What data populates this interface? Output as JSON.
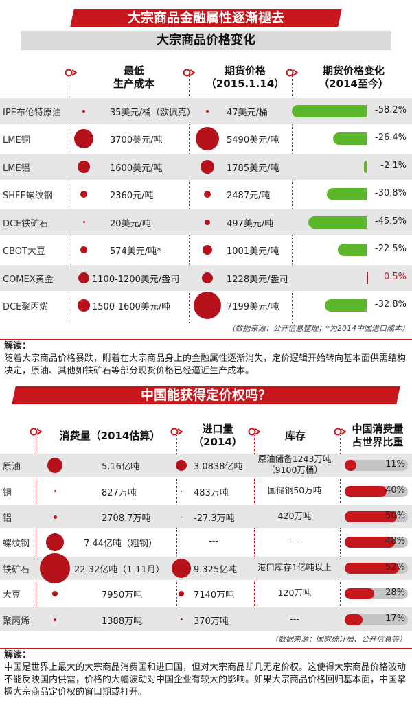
{
  "banner1": "大宗商品金融属性逐渐褪去",
  "subtitle1": "大宗商品价格变化",
  "t1": {
    "h_cost": "最低\n生产成本",
    "h_price": "期货价格\n（2015.1.14）",
    "h_change": "期货价格变化\n（2014至今）",
    "source": "（数据来源：公开信息整理；*为2014中国进口成本）",
    "rows": [
      {
        "name": "IPE布伦特原油",
        "cost": "35美元/桶（欧佩克）",
        "price": "47美元/桶",
        "change": "-58.2%",
        "chg": -58.2,
        "cost_r": 2,
        "price_r": 2
      },
      {
        "name": "LME铜",
        "cost": "3700美元/吨",
        "price": "5490美元/吨",
        "change": "-26.4%",
        "chg": -26.4,
        "cost_r": 14,
        "price_r": 17
      },
      {
        "name": "LME铝",
        "cost": "1600美元/吨",
        "price": "1785美元/吨",
        "change": "-2.1%",
        "chg": -2.1,
        "cost_r": 9,
        "price_r": 10
      },
      {
        "name": "SHFE螺纹钢",
        "cost": "2360元/吨",
        "price": "2487元/吨",
        "change": "-30.8%",
        "chg": -30.8,
        "cost_r": 5,
        "price_r": 5
      },
      {
        "name": "DCE铁矿石",
        "cost": "20美元/吨",
        "price": "497美元/吨",
        "change": "-45.5%",
        "chg": -45.5,
        "cost_r": 1.5,
        "price_r": 4
      },
      {
        "name": "CBOT大豆",
        "cost": "574美元/吨*",
        "price": "1001美元/吨",
        "change": "-22.5%",
        "chg": -22.5,
        "cost_r": 5,
        "price_r": 7
      },
      {
        "name": "COMEX黄金",
        "cost": "1100-1200美元/盎司",
        "price": "1228美元/盎司",
        "change": "0.5%",
        "chg": 0.5,
        "cost_r": 8,
        "price_r": 8
      },
      {
        "name": "DCE聚丙烯",
        "cost": "1500-1600美元/吨",
        "price": "7199美元/吨",
        "change": "-32.8%",
        "chg": -32.8,
        "cost_r": 9,
        "price_r": 20
      }
    ]
  },
  "reading1_title": "解读：",
  "reading1": "随着大宗商品价格暴跌，附着在大宗商品身上的金融属性逐渐消失，定价逻辑开始转向基本面供需结构决定，原油、其他如铁矿石等部分现货价格已经逼近生产成本。",
  "banner2": "中国能获得定价权吗？",
  "t2": {
    "h_cons": "消费量（2014估算）",
    "h_import": "进口量\n（2014）",
    "h_stock": "库存",
    "h_share": "中国消费量\n占世界比重",
    "source": "（数据来源：国家统计局、公开信息等）",
    "rows": [
      {
        "name": "原油",
        "cons": "5.16亿吨",
        "imp": "3.0838亿吨",
        "stock": "原油储备1243万吨\n（9100万桶）",
        "share": "11%",
        "sv": 11,
        "cons_r": 11,
        "imp_r": 8
      },
      {
        "name": "铜",
        "cons": "827万吨",
        "imp": "483万吨",
        "stock": "国储铜50万吨",
        "share": "40%",
        "sv": 40,
        "cons_r": 1.5,
        "imp_r": 1
      },
      {
        "name": "铝",
        "cons": "2708.7万吨",
        "imp": "-27.3万吨",
        "stock": "420万吨",
        "share": "50%",
        "sv": 50,
        "cons_r": 2.5,
        "imp_r": 0.5
      },
      {
        "name": "螺纹钢",
        "cons": "7.44亿吨（粗钢）",
        "imp": "---",
        "stock": "---",
        "share": "48%",
        "sv": 48,
        "cons_r": 13,
        "imp_r": 0
      },
      {
        "name": "铁矿石",
        "cons": "22.32亿吨（1-11月）",
        "imp": "9.325亿吨",
        "stock": "港口库存1亿吨以上",
        "share": "52%",
        "sv": 52,
        "cons_r": 22,
        "imp_r": 14
      },
      {
        "name": "大豆",
        "cons": "7950万吨",
        "imp": "7140万吨",
        "stock": "120万吨",
        "share": "28%",
        "sv": 28,
        "cons_r": 4,
        "imp_r": 4
      },
      {
        "name": "聚丙烯",
        "cons": "1388万吨",
        "imp": "370万吨",
        "stock": "---",
        "share": "17%",
        "sv": 17,
        "cons_r": 2,
        "imp_r": 1.5
      }
    ]
  },
  "reading2_title": "解读：",
  "reading2": "中国是世界上最大的大宗商品消费国和进口国，但对大宗商品却几无定价权。这使得大宗商品价格波动不能反映国内供需，价格的大幅波动对中国企业有较大的影响。如果大宗商品价格回归基本面，中国掌握大宗商品定价权的窗口期或打开。",
  "colors": {
    "red": "#c8161d",
    "green": "#5cb82a",
    "grey": "#c4c4c4"
  },
  "chart_data": [
    {
      "type": "bar",
      "title": "期货价格变化（2014至今）",
      "categories": [
        "IPE布伦特原油",
        "LME铜",
        "LME铝",
        "SHFE螺纹钢",
        "DCE铁矿石",
        "CBOT大豆",
        "COMEX黄金",
        "DCE聚丙烯"
      ],
      "values": [
        -58.2,
        -26.4,
        -2.1,
        -30.8,
        -45.5,
        -22.5,
        0.5,
        -32.8
      ]
    },
    {
      "type": "bar",
      "title": "中国消费量占世界比重",
      "categories": [
        "原油",
        "铜",
        "铝",
        "螺纹钢",
        "铁矿石",
        "大豆",
        "聚丙烯"
      ],
      "values": [
        11,
        40,
        50,
        48,
        52,
        28,
        17
      ]
    }
  ]
}
